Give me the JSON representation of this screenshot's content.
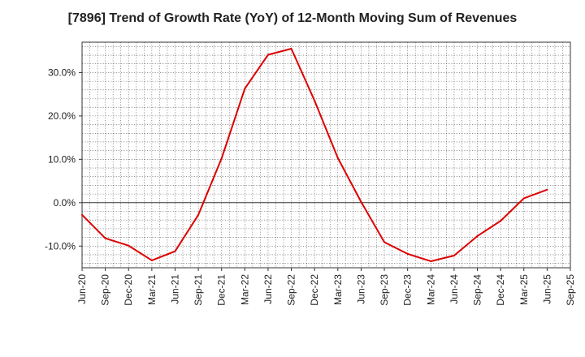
{
  "chart_data": {
    "type": "line",
    "title": "[7896]  Trend of Growth Rate (YoY) of 12-Month Moving Sum of Revenues",
    "xlabel": "",
    "ylabel": "",
    "ylim": [
      -15,
      37
    ],
    "yticks": [
      -10,
      0,
      10,
      20,
      30
    ],
    "ytick_labels": [
      "-10.0%",
      "0.0%",
      "10.0%",
      "20.0%",
      "30.0%"
    ],
    "x_tick_labels": [
      "Jun-20",
      "Sep-20",
      "Dec-20",
      "Mar-21",
      "Jun-21",
      "Sep-21",
      "Dec-21",
      "Mar-22",
      "Jun-22",
      "Sep-22",
      "Dec-22",
      "Mar-23",
      "Jun-23",
      "Sep-23",
      "Dec-23",
      "Mar-24",
      "Jun-24",
      "Sep-24",
      "Dec-24",
      "Mar-25",
      "Jun-25",
      "Sep-25"
    ],
    "grid": true,
    "series": [
      {
        "color": "#dd0000",
        "x": [
          "Jun-20",
          "Sep-20",
          "Dec-20",
          "Mar-21",
          "Jun-21",
          "Sep-21",
          "Dec-21",
          "Mar-22",
          "Jun-22",
          "Sep-22",
          "Dec-22",
          "Mar-23",
          "Jun-23",
          "Sep-23",
          "Dec-23",
          "Mar-24",
          "Jun-24",
          "Sep-24",
          "Dec-24",
          "Mar-25",
          "Jun-25"
        ],
        "values": [
          -2.8,
          -8.2,
          -9.9,
          -13.3,
          -11.2,
          -2.8,
          10.2,
          26.3,
          34.1,
          35.5,
          23.5,
          10.3,
          0.2,
          -9.1,
          -11.8,
          -13.5,
          -12.2,
          -7.7,
          -4.2,
          1.0,
          3.0
        ]
      }
    ]
  }
}
